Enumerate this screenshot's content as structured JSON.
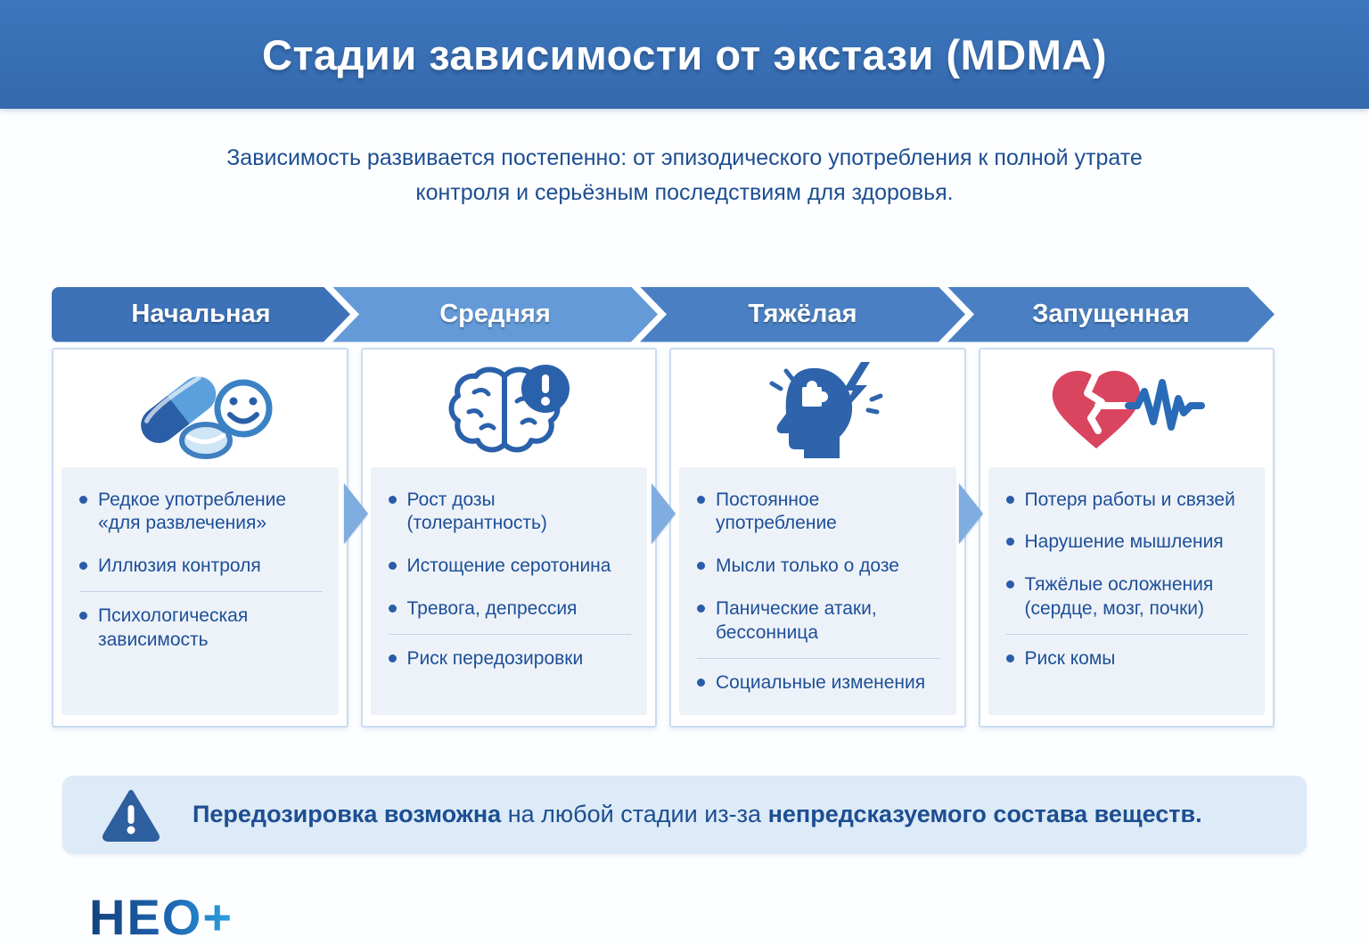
{
  "header": {
    "title": "Стадии зависимости от экстази (MDMA)"
  },
  "intro": {
    "text": "Зависимость развивается постепенно: от эпизодического употребления к полной утрате контроля и серьёзным последствиям для здоровья."
  },
  "stages": [
    {
      "name": "Начальная",
      "color": "#3d72b8",
      "icon": "pills-smiley-icon",
      "items": [
        "Редкое употребление «для развлечения»",
        "Иллюзия контроля",
        "Психологическая зависимость"
      ]
    },
    {
      "name": "Средняя",
      "color": "#649ad7",
      "icon": "brain-alert-icon",
      "items": [
        "Рост дозы (толерантность)",
        "Истощение серотонина",
        "Тревога, депрессия",
        "Риск передозировки"
      ]
    },
    {
      "name": "Тяжёлая",
      "color": "#4a80c3",
      "icon": "head-puzzle-lightning-icon",
      "items": [
        "Постоянное употребление",
        "Мысли только о дозе",
        "Панические атаки, бессонница",
        "Социальные изменения"
      ]
    },
    {
      "name": "Запущенная",
      "color": "#4a80c3",
      "icon": "broken-heart-ecg-icon",
      "items": [
        "Потеря работы и связей",
        "Нарушение мышления",
        "Тяжёлые осложнения (сердце, мозг, почки)",
        "Риск комы"
      ]
    }
  ],
  "warning": {
    "part1_bold": "Передозировка возможна ",
    "part2": "на любой стадии из-за ",
    "part3_bold": "непредсказуемого состава веществ."
  },
  "logo": {
    "text": "НЕО+"
  },
  "colors": {
    "banner_blue": "#3a71b6",
    "text_blue": "#1d4f97",
    "warning_bg": "#ddeaf7",
    "warning_icon": "#2e5f9f",
    "heart_red": "#d9455f",
    "arrow_blue": "#7fade0"
  }
}
